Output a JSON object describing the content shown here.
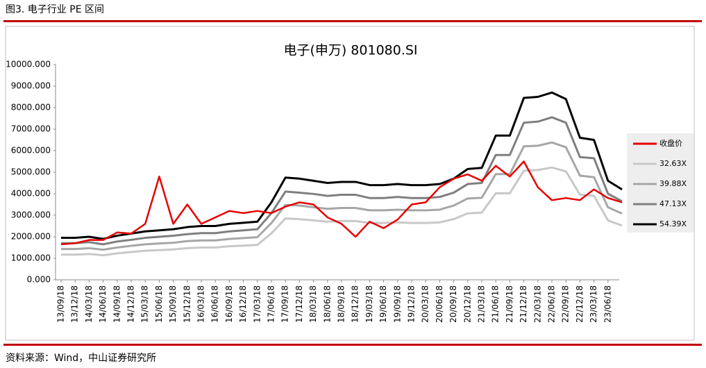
{
  "caption": "图3. 电子行业 PE 区间",
  "source": "资料来源：Wind，中山证券研究所",
  "chart_data": {
    "type": "line",
    "title": "电子(申万) 801080.SI",
    "categories": [
      "13/09/18",
      "13/12/18",
      "14/03/18",
      "14/06/18",
      "14/09/18",
      "14/12/18",
      "15/03/18",
      "15/06/18",
      "15/09/18",
      "15/12/18",
      "16/03/18",
      "16/06/18",
      "16/09/18",
      "16/12/18",
      "17/03/18",
      "17/06/18",
      "17/09/18",
      "17/12/18",
      "18/03/18",
      "18/06/18",
      "18/09/18",
      "18/12/18",
      "19/03/18",
      "19/06/18",
      "19/09/18",
      "19/12/18",
      "20/03/18",
      "20/06/18",
      "20/09/18",
      "20/12/18",
      "21/03/18",
      "21/06/18",
      "21/09/18",
      "21/12/18",
      "22/03/18",
      "22/06/18",
      "22/09/18",
      "22/12/18",
      "23/03/18",
      "23/06/18",
      null
    ],
    "series": [
      {
        "name": "收盘价",
        "color": "#e60000",
        "values": [
          1650,
          1700,
          1850,
          1850,
          2200,
          2150,
          2600,
          4800,
          2600,
          3500,
          2600,
          2900,
          3200,
          3100,
          3200,
          3100,
          3400,
          3600,
          3500,
          2900,
          2600,
          2000,
          2700,
          2400,
          2800,
          3500,
          3600,
          4300,
          4700,
          4900,
          4600,
          5300,
          4800,
          5500,
          4300,
          3700,
          3800,
          3700,
          4200,
          3800,
          3600
        ]
      },
      {
        "name": "32.63X",
        "color": "#c8c8c8",
        "values": [
          1170,
          1170,
          1200,
          1140,
          1230,
          1290,
          1350,
          1380,
          1410,
          1470,
          1500,
          1500,
          1560,
          1590,
          1620,
          2160,
          2850,
          2820,
          2760,
          2700,
          2730,
          2730,
          2640,
          2640,
          2670,
          2640,
          2640,
          2670,
          2820,
          3090,
          3120,
          4020,
          4020,
          5070,
          5100,
          5220,
          5040,
          3960,
          3900,
          2760,
          2520
        ]
      },
      {
        "name": "39.88X",
        "color": "#a6a6a6",
        "values": [
          1430,
          1430,
          1470,
          1400,
          1500,
          1580,
          1650,
          1690,
          1720,
          1800,
          1830,
          1830,
          1900,
          1940,
          1980,
          2640,
          3480,
          3450,
          3370,
          3300,
          3340,
          3340,
          3230,
          3230,
          3260,
          3230,
          3230,
          3260,
          3450,
          3780,
          3810,
          4910,
          4910,
          6200,
          6230,
          6380,
          6160,
          4840,
          4770,
          3370,
          3080
        ]
      },
      {
        "name": "47.13X",
        "color": "#7f7f7f",
        "values": [
          1700,
          1700,
          1750,
          1650,
          1780,
          1860,
          1950,
          2000,
          2050,
          2120,
          2170,
          2170,
          2250,
          2300,
          2350,
          3100,
          4100,
          4050,
          3990,
          3900,
          3950,
          3950,
          3800,
          3800,
          3850,
          3800,
          3800,
          3850,
          4050,
          4450,
          4500,
          5800,
          5800,
          7300,
          7350,
          7550,
          7300,
          5700,
          5650,
          4000,
          3650
        ]
      },
      {
        "name": "54.39X",
        "color": "#000000",
        "values": [
          1950,
          1950,
          2000,
          1900,
          2050,
          2150,
          2250,
          2300,
          2350,
          2450,
          2500,
          2500,
          2600,
          2650,
          2700,
          3600,
          4750,
          4700,
          4600,
          4500,
          4550,
          4550,
          4400,
          4400,
          4450,
          4400,
          4400,
          4450,
          4700,
          5150,
          5200,
          6700,
          6700,
          8450,
          8500,
          8700,
          8400,
          6600,
          6500,
          4600,
          4200
        ]
      }
    ],
    "ylim": [
      0,
      10000
    ],
    "yticks": [
      {
        "value": 0,
        "label": "0.000"
      },
      {
        "value": 1000,
        "label": "1000.000"
      },
      {
        "value": 2000,
        "label": "2000.000"
      },
      {
        "value": 3000,
        "label": "3000.000"
      },
      {
        "value": 4000,
        "label": "4000.000"
      },
      {
        "value": 5000,
        "label": "5000.000"
      },
      {
        "value": 6000,
        "label": "6000.000"
      },
      {
        "value": 7000,
        "label": "7000.000"
      },
      {
        "value": 8000,
        "label": "8000.000"
      },
      {
        "value": 9000,
        "label": "9000.000"
      },
      {
        "value": 10000,
        "label": "10000.000"
      }
    ],
    "legend": "right"
  }
}
